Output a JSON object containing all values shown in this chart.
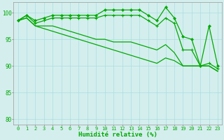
{
  "title": "",
  "xlabel": "Humidité relative (%)",
  "ylabel": "",
  "background_color": "#d4eeee",
  "grid_color": "#aadddd",
  "line_color": "#00aa00",
  "xlim": [
    -0.5,
    23.5
  ],
  "ylim": [
    79,
    102
  ],
  "yticks": [
    80,
    85,
    90,
    95,
    100
  ],
  "xticks": [
    0,
    1,
    2,
    3,
    4,
    5,
    6,
    7,
    8,
    9,
    10,
    11,
    12,
    13,
    14,
    15,
    16,
    17,
    18,
    19,
    20,
    21,
    22,
    23
  ],
  "series": [
    [
      98.5,
      99.5,
      98.5,
      99.0,
      99.5,
      99.5,
      99.5,
      99.5,
      99.5,
      99.5,
      100.5,
      100.5,
      100.5,
      100.5,
      100.5,
      99.5,
      98.5,
      101.0,
      99.0,
      95.5,
      95.0,
      90.0,
      97.5,
      90.0
    ],
    [
      98.5,
      99.5,
      98.0,
      98.5,
      99.0,
      99.0,
      99.0,
      99.0,
      99.0,
      99.0,
      99.5,
      99.5,
      99.5,
      99.5,
      99.5,
      98.5,
      97.5,
      99.0,
      98.0,
      93.0,
      93.0,
      90.0,
      90.5,
      89.5
    ],
    [
      98.5,
      99.0,
      97.5,
      97.5,
      97.5,
      97.0,
      96.5,
      96.0,
      95.5,
      95.0,
      95.0,
      94.5,
      94.5,
      94.5,
      94.0,
      93.5,
      93.0,
      94.0,
      92.5,
      90.0,
      90.0,
      90.0,
      90.0,
      89.0
    ],
    [
      98.5,
      99.0,
      97.5,
      97.0,
      96.5,
      96.0,
      95.5,
      95.0,
      94.5,
      94.0,
      93.5,
      93.0,
      92.5,
      92.0,
      91.5,
      91.0,
      90.5,
      91.5,
      91.0,
      90.0,
      90.0,
      90.0,
      90.0,
      89.0
    ]
  ]
}
